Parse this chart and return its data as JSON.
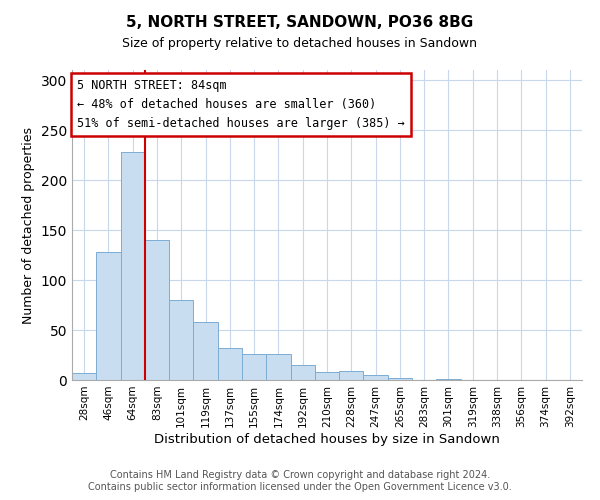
{
  "title": "5, NORTH STREET, SANDOWN, PO36 8BG",
  "subtitle": "Size of property relative to detached houses in Sandown",
  "xlabel": "Distribution of detached houses by size in Sandown",
  "ylabel": "Number of detached properties",
  "bin_labels": [
    "28sqm",
    "46sqm",
    "64sqm",
    "83sqm",
    "101sqm",
    "119sqm",
    "137sqm",
    "155sqm",
    "174sqm",
    "192sqm",
    "210sqm",
    "228sqm",
    "247sqm",
    "265sqm",
    "283sqm",
    "301sqm",
    "319sqm",
    "338sqm",
    "356sqm",
    "374sqm",
    "392sqm"
  ],
  "bar_values": [
    7,
    128,
    228,
    140,
    80,
    58,
    32,
    26,
    26,
    15,
    8,
    9,
    5,
    2,
    0,
    1,
    0,
    0,
    0,
    0,
    0
  ],
  "bar_color": "#c8ddf0",
  "bar_edge_color": "#7badd4",
  "ylim": [
    0,
    310
  ],
  "yticks": [
    0,
    50,
    100,
    150,
    200,
    250,
    300
  ],
  "vline_index": 2.5,
  "vline_color": "#cc0000",
  "annotation_title": "5 NORTH STREET: 84sqm",
  "annotation_line1": "← 48% of detached houses are smaller (360)",
  "annotation_line2": "51% of semi-detached houses are larger (385) →",
  "annotation_box_color": "#ffffff",
  "annotation_box_edge": "#cc0000",
  "footer1": "Contains HM Land Registry data © Crown copyright and database right 2024.",
  "footer2": "Contains public sector information licensed under the Open Government Licence v3.0.",
  "bg_color": "#ffffff",
  "grid_color": "#c8d8ea"
}
